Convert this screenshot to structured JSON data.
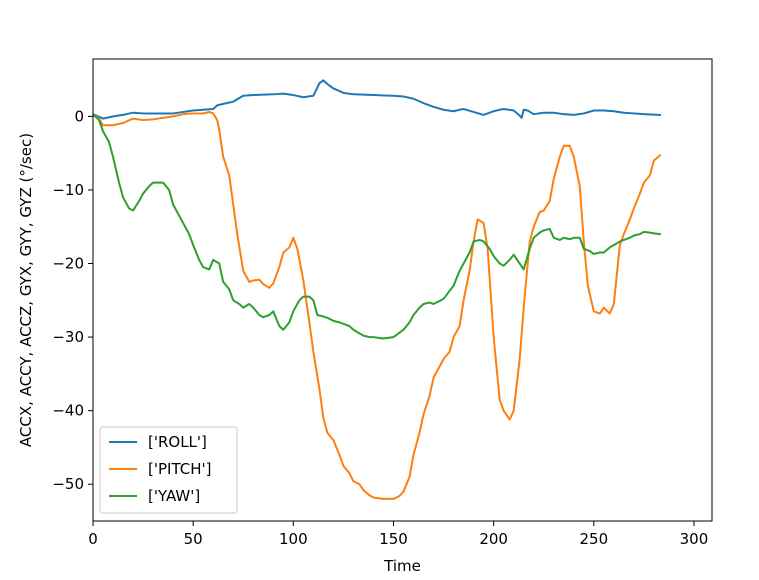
{
  "chart_data": {
    "type": "line",
    "title": "",
    "xlabel": "Time",
    "ylabel": "ACCX, ACCY, ACCZ, GYX, GYY, GYZ (°/sec)",
    "xlim": [
      0,
      309
    ],
    "ylim": [
      -55,
      7.8
    ],
    "xticks": [
      0,
      50,
      100,
      150,
      200,
      250,
      300
    ],
    "yticks": [
      0,
      -10,
      -20,
      -30,
      -40,
      -50
    ],
    "grid": false,
    "legend_position": "lower-left",
    "series": [
      {
        "name": "['ROLL']",
        "color": "#1f77b4",
        "x": [
          0,
          5,
          10,
          15,
          20,
          25,
          30,
          40,
          50,
          55,
          60,
          62,
          65,
          70,
          75,
          80,
          90,
          95,
          100,
          105,
          110,
          113,
          115,
          117,
          120,
          125,
          130,
          140,
          150,
          155,
          160,
          165,
          170,
          175,
          180,
          183,
          185,
          190,
          195,
          200,
          203,
          205,
          210,
          213,
          214,
          215,
          217,
          220,
          225,
          230,
          235,
          240,
          245,
          250,
          255,
          260,
          265,
          270,
          275,
          283
        ],
        "values": [
          0.3,
          -0.3,
          0.0,
          0.2,
          0.5,
          0.4,
          0.4,
          0.4,
          0.8,
          0.9,
          1.0,
          1.5,
          1.7,
          2.0,
          2.8,
          2.9,
          3.0,
          3.1,
          2.9,
          2.6,
          2.8,
          4.5,
          4.9,
          4.4,
          3.8,
          3.2,
          3.0,
          2.9,
          2.8,
          2.7,
          2.4,
          1.8,
          1.3,
          0.9,
          0.7,
          0.9,
          1.0,
          0.6,
          0.2,
          0.7,
          0.9,
          1.0,
          0.8,
          0.1,
          -0.2,
          0.9,
          0.8,
          0.3,
          0.5,
          0.5,
          0.3,
          0.2,
          0.4,
          0.8,
          0.8,
          0.7,
          0.5,
          0.4,
          0.3,
          0.2
        ]
      },
      {
        "name": "['PITCH']",
        "color": "#ff7f0e",
        "x": [
          0,
          3,
          5,
          10,
          15,
          20,
          25,
          30,
          35,
          40,
          45,
          50,
          55,
          58,
          60,
          62,
          63,
          65,
          68,
          70,
          72,
          75,
          78,
          80,
          83,
          85,
          88,
          90,
          93,
          95,
          98,
          100,
          102,
          105,
          108,
          110,
          113,
          115,
          117,
          120,
          123,
          125,
          128,
          130,
          133,
          135,
          138,
          140,
          145,
          150,
          153,
          155,
          158,
          160,
          163,
          165,
          168,
          170,
          175,
          178,
          180,
          183,
          185,
          188,
          190,
          192,
          195,
          197,
          200,
          203,
          205,
          208,
          210,
          213,
          215,
          218,
          220,
          223,
          225,
          228,
          230,
          233,
          235,
          238,
          240,
          243,
          245,
          247,
          250,
          253,
          255,
          258,
          260,
          263,
          265,
          268,
          270,
          273,
          275,
          278,
          280,
          283
        ],
        "values": [
          0.3,
          -0.3,
          -1.2,
          -1.2,
          -0.9,
          -0.3,
          -0.5,
          -0.4,
          -0.2,
          0.0,
          0.3,
          0.4,
          0.4,
          0.6,
          0.4,
          -0.5,
          -1.8,
          -5.5,
          -8.0,
          -12.0,
          -16.0,
          -21.0,
          -22.5,
          -22.3,
          -22.2,
          -22.8,
          -23.3,
          -22.7,
          -20.5,
          -18.5,
          -17.8,
          -16.5,
          -18.0,
          -22.3,
          -28.0,
          -32.0,
          -37.0,
          -41.0,
          -43.0,
          -44.0,
          -46.0,
          -47.5,
          -48.5,
          -49.6,
          -50.0,
          -50.8,
          -51.5,
          -51.8,
          -52.0,
          -52.0,
          -51.6,
          -51.0,
          -49.0,
          -46.0,
          -43.0,
          -40.5,
          -38.0,
          -35.5,
          -33.0,
          -32.0,
          -30.0,
          -28.5,
          -25.0,
          -21.0,
          -17.0,
          -14.0,
          -14.5,
          -18.0,
          -30.0,
          -38.5,
          -40.0,
          -41.2,
          -40.0,
          -33.0,
          -26.0,
          -17.0,
          -15.0,
          -13.0,
          -12.8,
          -11.5,
          -8.5,
          -5.5,
          -4.0,
          -4.0,
          -5.5,
          -9.5,
          -17.0,
          -23.0,
          -26.5,
          -26.8,
          -26.0,
          -26.8,
          -25.5,
          -17.5,
          -16.0,
          -14.0,
          -12.5,
          -10.5,
          -9.0,
          -8.0,
          -6.0,
          -5.3
        ]
      },
      {
        "name": "['YAW']",
        "color": "#2ca02c",
        "x": [
          0,
          3,
          5,
          8,
          10,
          13,
          15,
          18,
          20,
          23,
          25,
          28,
          30,
          32,
          35,
          38,
          40,
          43,
          45,
          48,
          50,
          53,
          55,
          58,
          60,
          63,
          65,
          68,
          70,
          73,
          75,
          78,
          80,
          83,
          85,
          88,
          90,
          93,
          95,
          98,
          100,
          103,
          105,
          108,
          110,
          112,
          115,
          118,
          120,
          123,
          125,
          128,
          130,
          133,
          135,
          138,
          140,
          145,
          150,
          155,
          158,
          160,
          163,
          165,
          168,
          170,
          175,
          180,
          183,
          185,
          188,
          190,
          193,
          195,
          198,
          200,
          203,
          205,
          208,
          210,
          213,
          215,
          218,
          220,
          223,
          225,
          228,
          230,
          233,
          235,
          238,
          240,
          243,
          245,
          248,
          250,
          253,
          255,
          258,
          260,
          263,
          265,
          268,
          270,
          273,
          275,
          278,
          280,
          283
        ],
        "values": [
          0.3,
          -0.5,
          -2.0,
          -3.5,
          -5.5,
          -9.0,
          -11.0,
          -12.5,
          -12.8,
          -11.5,
          -10.5,
          -9.5,
          -9.0,
          -9.0,
          -9.0,
          -10.0,
          -12.0,
          -13.5,
          -14.5,
          -16.0,
          -17.5,
          -19.5,
          -20.5,
          -20.8,
          -19.5,
          -20.0,
          -22.5,
          -23.5,
          -25.0,
          -25.5,
          -26.0,
          -25.5,
          -26.0,
          -27.0,
          -27.3,
          -27.0,
          -26.5,
          -28.5,
          -29.0,
          -28.0,
          -26.5,
          -25.0,
          -24.5,
          -24.5,
          -25.0,
          -27.0,
          -27.2,
          -27.5,
          -27.8,
          -28.0,
          -28.2,
          -28.5,
          -29.0,
          -29.5,
          -29.8,
          -30.0,
          -30.0,
          -30.2,
          -30.0,
          -29.0,
          -28.0,
          -27.0,
          -26.0,
          -25.5,
          -25.3,
          -25.5,
          -24.8,
          -23.0,
          -21.0,
          -20.0,
          -18.5,
          -17.0,
          -16.8,
          -17.0,
          -18.0,
          -19.0,
          -20.0,
          -20.3,
          -19.5,
          -18.8,
          -20.0,
          -20.8,
          -18.0,
          -16.5,
          -15.8,
          -15.5,
          -15.3,
          -16.5,
          -16.8,
          -16.5,
          -16.7,
          -16.5,
          -16.5,
          -18.0,
          -18.3,
          -18.7,
          -18.5,
          -18.5,
          -17.8,
          -17.5,
          -17.0,
          -16.8,
          -16.5,
          -16.2,
          -16.0,
          -15.7,
          -15.8,
          -15.9,
          -16.0
        ]
      }
    ]
  }
}
